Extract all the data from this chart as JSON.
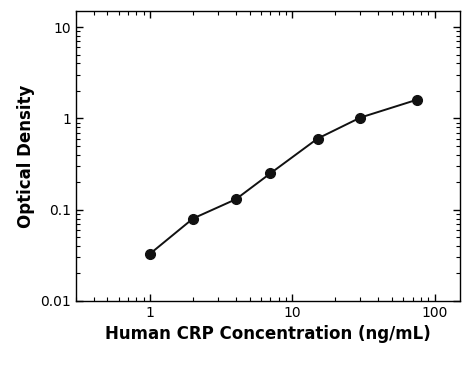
{
  "x": [
    1.0,
    2.0,
    4.0,
    7.0,
    15.0,
    30.0,
    75.0
  ],
  "y": [
    0.033,
    0.08,
    0.13,
    0.25,
    0.6,
    1.02,
    1.6
  ],
  "xlabel": "Human CRP Concentration (ng/mL)",
  "ylabel": "Optical Density",
  "xlim": [
    0.3,
    150
  ],
  "ylim": [
    0.01,
    15
  ],
  "marker": "o",
  "marker_size": 7,
  "marker_color": "#111111",
  "line_color": "#111111",
  "line_width": 1.4,
  "background_color": "#ffffff",
  "xlabel_fontsize": 12,
  "ylabel_fontsize": 12,
  "xlabel_fontweight": "bold",
  "ylabel_fontweight": "bold",
  "tick_labelsize": 10
}
